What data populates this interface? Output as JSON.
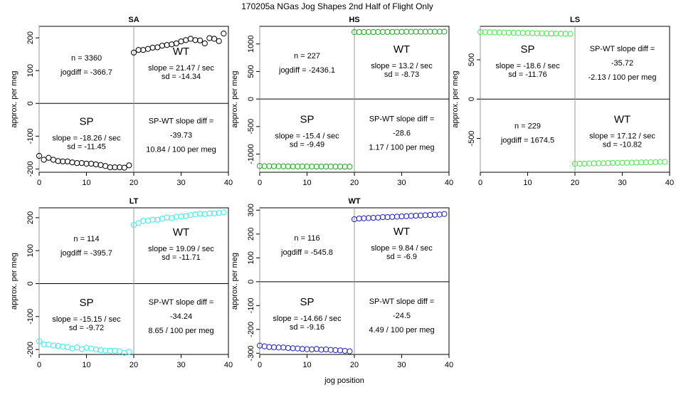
{
  "figure_title": "170205a   NGas Jog Shapes 2nd Half of Flight Only",
  "xlabel": "jog position",
  "chart_data": [
    {
      "type": "scatter",
      "title": "SA",
      "color": "#000000",
      "xlim": [
        0,
        40
      ],
      "ylim": [
        -210,
        235
      ],
      "xticks": [
        0,
        10,
        20,
        30,
        40
      ],
      "yticks": [
        -200,
        -100,
        0,
        100,
        200
      ],
      "ylabel": "approx. per meg",
      "x": [
        0,
        1,
        2,
        3,
        4,
        5,
        6,
        7,
        8,
        9,
        10,
        11,
        12,
        13,
        14,
        15,
        16,
        17,
        18,
        19,
        20,
        21,
        22,
        23,
        24,
        25,
        26,
        27,
        28,
        29,
        30,
        31,
        32,
        33,
        34,
        35,
        36,
        37,
        38,
        39
      ],
      "y": [
        -160,
        -172,
        -166,
        -172,
        -176,
        -177,
        -177,
        -180,
        -182,
        -182,
        -184,
        -184,
        -186,
        -188,
        -191,
        -195,
        -195,
        -195,
        -196,
        -189,
        155,
        163,
        163,
        166,
        170,
        171,
        176,
        178,
        180,
        183,
        189,
        193,
        197,
        193,
        192,
        183,
        199,
        197,
        190,
        213
      ],
      "left_upper": [
        "n = 3360",
        "jogdiff = -366.7"
      ],
      "right_upper": {
        "heading": "WT",
        "lines": [
          "slope = 21.47 / sec",
          "sd = -14.34"
        ]
      },
      "left_lower": {
        "heading": "SP",
        "lines": [
          "slope = -18.26 / sec",
          "sd = -11.45"
        ]
      },
      "right_lower": [
        "SP-WT slope diff =",
        "-39.73",
        "10.84 / 100 per meg"
      ]
    },
    {
      "type": "scatter",
      "title": "HS",
      "color": "#22aa22",
      "xlim": [
        0,
        40
      ],
      "ylim": [
        -1330,
        1320
      ],
      "xticks": [
        0,
        10,
        20,
        30,
        40
      ],
      "yticks": [
        -1000,
        -500,
        0,
        500,
        1000
      ],
      "ylabel": "approx. per meg",
      "x": [
        0,
        1,
        2,
        3,
        4,
        5,
        6,
        7,
        8,
        9,
        10,
        11,
        12,
        13,
        14,
        15,
        16,
        17,
        18,
        19,
        20,
        21,
        22,
        23,
        24,
        25,
        26,
        27,
        28,
        29,
        30,
        31,
        32,
        33,
        34,
        35,
        36,
        37,
        38,
        39
      ],
      "y": [
        -1217,
        -1220,
        -1220,
        -1221,
        -1222,
        -1223,
        -1223,
        -1224,
        -1224,
        -1224,
        -1225,
        -1225,
        -1226,
        -1226,
        -1227,
        -1227,
        -1228,
        -1228,
        -1229,
        -1229,
        1215,
        1216,
        1216,
        1217,
        1217,
        1218,
        1218,
        1219,
        1219,
        1220,
        1220,
        1221,
        1221,
        1222,
        1222,
        1222,
        1223,
        1223,
        1224,
        1224
      ],
      "left_upper": [
        "n = 227",
        "jogdiff = -2436.1"
      ],
      "right_upper": {
        "heading": "WT",
        "lines": [
          "slope = 13.2 / sec",
          "sd = -8.73"
        ]
      },
      "left_lower": {
        "heading": "SP",
        "lines": [
          "slope = -15.4 / sec",
          "sd = -9.49"
        ]
      },
      "right_lower": [
        "SP-WT slope diff =",
        "-28.6",
        "1.17 / 100 per meg"
      ]
    },
    {
      "type": "scatter",
      "title": "LS",
      "color": "#44ee44",
      "xlim": [
        0,
        40
      ],
      "ylim": [
        -930,
        925
      ],
      "xticks": [
        0,
        10,
        20,
        30,
        40
      ],
      "yticks": [
        -500,
        0,
        500
      ],
      "ylabel": "approx. per meg",
      "x": [
        0,
        1,
        2,
        3,
        4,
        5,
        6,
        7,
        8,
        9,
        10,
        11,
        12,
        13,
        14,
        15,
        16,
        17,
        18,
        19,
        20,
        21,
        22,
        23,
        24,
        25,
        26,
        27,
        28,
        29,
        30,
        31,
        32,
        33,
        34,
        35,
        36,
        37,
        38,
        39
      ],
      "y": [
        852,
        851,
        849,
        848,
        847,
        846,
        845,
        843,
        842,
        841,
        840,
        839,
        837,
        836,
        835,
        834,
        833,
        831,
        830,
        829,
        -822,
        -821,
        -820,
        -818,
        -817,
        -816,
        -815,
        -813,
        -812,
        -811,
        -810,
        -809,
        -808,
        -806,
        -805,
        -804,
        -803,
        -802,
        -800,
        -799
      ],
      "left_upper": {
        "heading": "SP",
        "lines": [
          "slope = -18.6 / sec",
          "sd = -11.76"
        ]
      },
      "right_upper": [
        "SP-WT slope diff =",
        "-35.72",
        "-2.13 / 100 per meg"
      ],
      "left_lower": [
        "n = 229",
        "jogdiff = 1674.5"
      ],
      "right_lower": {
        "heading": "WT",
        "lines": [
          "slope = 17.12 / sec",
          "sd = -10.82"
        ]
      }
    },
    {
      "type": "scatter",
      "title": "LT",
      "color": "#33eeee",
      "xlim": [
        0,
        40
      ],
      "ylim": [
        -215,
        230
      ],
      "xticks": [
        0,
        10,
        20,
        30,
        40
      ],
      "yticks": [
        -200,
        -100,
        0,
        100,
        200
      ],
      "ylabel": "approx. per meg",
      "x": [
        0,
        1,
        2,
        3,
        4,
        5,
        6,
        7,
        8,
        9,
        10,
        11,
        12,
        13,
        14,
        15,
        16,
        17,
        18,
        19,
        20,
        21,
        22,
        23,
        24,
        25,
        26,
        27,
        28,
        29,
        30,
        31,
        32,
        33,
        34,
        35,
        36,
        37,
        38,
        39
      ],
      "y": [
        -175,
        -185,
        -185,
        -188,
        -189,
        -191,
        -193,
        -197,
        -194,
        -199,
        -195,
        -197,
        -200,
        -202,
        -203,
        -204,
        -204,
        -206,
        -210,
        -207,
        178,
        184,
        190,
        191,
        194,
        194,
        197,
        201,
        199,
        203,
        204,
        205,
        208,
        210,
        212,
        211,
        213,
        213,
        214,
        216
      ],
      "left_upper": [
        "n = 114",
        "jogdiff = -395.7"
      ],
      "right_upper": {
        "heading": "WT",
        "lines": [
          "slope = 19.09 / sec",
          "sd = -11.71"
        ]
      },
      "left_lower": {
        "heading": "SP",
        "lines": [
          "slope = -15.15 / sec",
          "sd = -9.72"
        ]
      },
      "right_lower": [
        "SP-WT slope diff =",
        "-34.24",
        "8.65 / 100 per meg"
      ]
    },
    {
      "type": "scatter",
      "title": "WT",
      "color": "#2222cc",
      "xlim": [
        0,
        40
      ],
      "ylim": [
        -305,
        310
      ],
      "xticks": [
        0,
        10,
        20,
        30,
        40
      ],
      "yticks": [
        -300,
        -200,
        -100,
        0,
        100,
        200,
        300
      ],
      "ylabel": "approx. per meg",
      "x": [
        0,
        1,
        2,
        3,
        4,
        5,
        6,
        7,
        8,
        9,
        10,
        11,
        12,
        13,
        14,
        15,
        16,
        17,
        18,
        19,
        20,
        21,
        22,
        23,
        24,
        25,
        26,
        27,
        28,
        29,
        30,
        31,
        32,
        33,
        34,
        35,
        36,
        37,
        38,
        39
      ],
      "y": [
        -268,
        -271,
        -274,
        -275,
        -276,
        -276,
        -278,
        -279,
        -280,
        -282,
        -283,
        -284,
        -282,
        -285,
        -284,
        -286,
        -287,
        -288,
        -290,
        -292,
        262,
        265,
        266,
        267,
        268,
        269,
        271,
        271,
        272,
        273,
        274,
        275,
        276,
        277,
        278,
        279,
        280,
        281,
        282,
        284
      ],
      "left_upper": [
        "n = 116",
        "jogdiff = -545.8"
      ],
      "right_upper": {
        "heading": "WT",
        "lines": [
          "slope = 9.84 / sec",
          "sd = -6.9"
        ]
      },
      "left_lower": {
        "heading": "SP",
        "lines": [
          "slope = -14.66 / sec",
          "sd = -9.16"
        ]
      },
      "right_lower": [
        "SP-WT slope diff =",
        "-24.5",
        "4.49 / 100 per meg"
      ]
    }
  ]
}
